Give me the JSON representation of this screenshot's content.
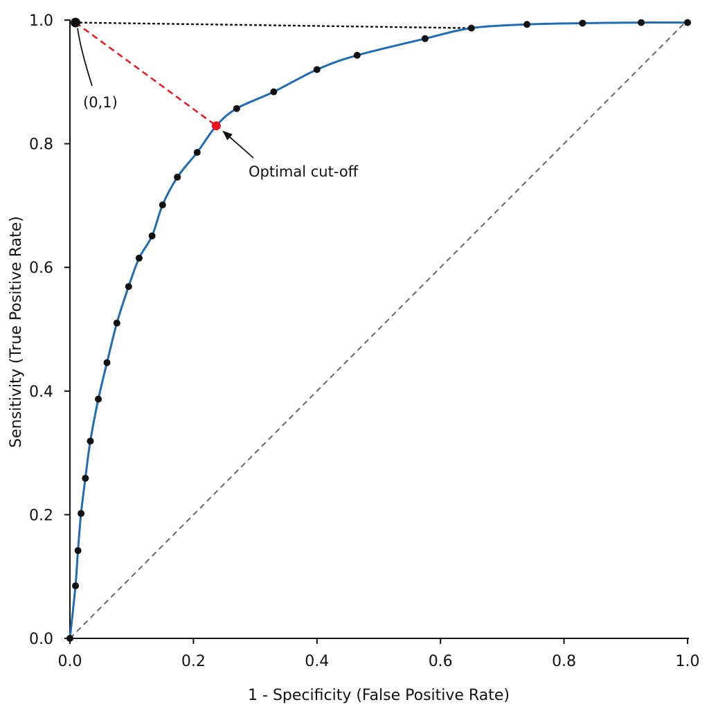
{
  "chart_data": {
    "type": "line",
    "title": "",
    "xlabel": "1 - Specificity (False Positive Rate)",
    "ylabel": "Sensitivity (True Positive Rate)",
    "xlim": [
      0,
      1
    ],
    "ylim": [
      0,
      1
    ],
    "x_ticks": [
      "0.0",
      "0.2",
      "0.4",
      "0.6",
      "0.8",
      "1.0"
    ],
    "y_ticks": [
      "0.0",
      "0.2",
      "0.4",
      "0.6",
      "0.8",
      "1.0"
    ],
    "grid": false,
    "legend": "none",
    "series": [
      {
        "points": [
          [
            0.0,
            0.0
          ],
          [
            0.009,
            0.085
          ],
          [
            0.013,
            0.142
          ],
          [
            0.018,
            0.202
          ],
          [
            0.025,
            0.259
          ],
          [
            0.033,
            0.319
          ],
          [
            0.046,
            0.387
          ],
          [
            0.06,
            0.446
          ],
          [
            0.076,
            0.51
          ],
          [
            0.095,
            0.569
          ],
          [
            0.112,
            0.615
          ],
          [
            0.133,
            0.651
          ],
          [
            0.15,
            0.701
          ],
          [
            0.174,
            0.746
          ],
          [
            0.206,
            0.786
          ],
          [
            0.237,
            0.829
          ],
          [
            0.27,
            0.857
          ],
          [
            0.33,
            0.884
          ],
          [
            0.4,
            0.92
          ],
          [
            0.465,
            0.943
          ],
          [
            0.575,
            0.97
          ],
          [
            0.65,
            0.987
          ],
          [
            0.74,
            0.993
          ],
          [
            0.83,
            0.995
          ],
          [
            0.925,
            0.996
          ],
          [
            1.0,
            0.996
          ]
        ],
        "color": "#1f6bb5"
      }
    ],
    "reference_line": {
      "from": [
        0,
        0
      ],
      "to": [
        1,
        1
      ],
      "style": "dashed",
      "color": "#666666"
    },
    "ideal_point": {
      "point": [
        0.009,
        0.996
      ],
      "label": "(0,1)"
    },
    "optimal_cutoff": {
      "point": [
        0.237,
        0.829
      ],
      "label": "Optimal cut-off",
      "color": "#e8141c"
    },
    "horizontal_reference": {
      "from": [
        0.009,
        0.996
      ],
      "to": [
        0.65,
        0.987
      ],
      "style": "dotted",
      "color": "#111111"
    }
  }
}
